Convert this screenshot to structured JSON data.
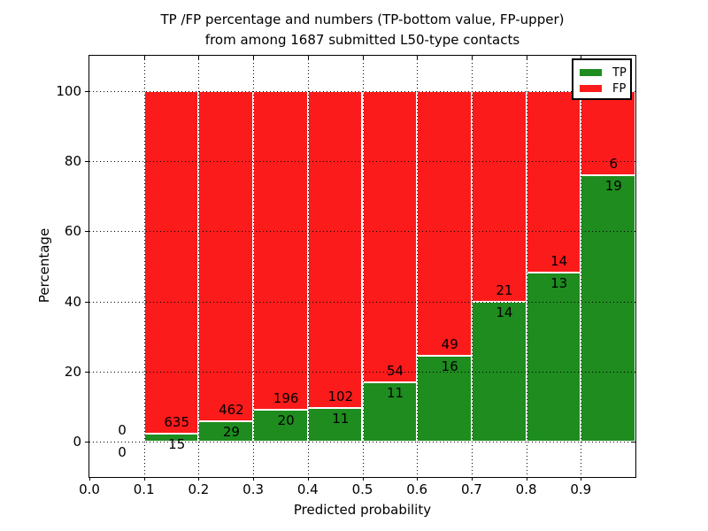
{
  "title": {
    "line1": "TP /FP percentage and numbers (TP-bottom value, FP-upper)",
    "line2": "from among 1687 submitted L50-type contacts"
  },
  "chart_data": {
    "type": "bar",
    "stacked": true,
    "normalized": "each bar scaled to 100%, bar heights show TP/(TP+FP) and FP/(TP+FP) percentages",
    "title": "TP /FP percentage and numbers (TP-bottom value, FP-upper)\nfrom among 1687 submitted L50-type contacts",
    "xlabel": "Predicted probability",
    "ylabel": "Percentage",
    "total_contacts": 1687,
    "xlim": [
      0.0,
      1.0
    ],
    "ylim": [
      -10,
      110
    ],
    "grid": true,
    "bins": [
      [
        0.0,
        0.1
      ],
      [
        0.1,
        0.2
      ],
      [
        0.2,
        0.3
      ],
      [
        0.3,
        0.4
      ],
      [
        0.4,
        0.5
      ],
      [
        0.5,
        0.6
      ],
      [
        0.6,
        0.7
      ],
      [
        0.7,
        0.8
      ],
      [
        0.8,
        0.9
      ],
      [
        0.9,
        1.0
      ]
    ],
    "xticks": [
      "0.0",
      "0.1",
      "0.2",
      "0.3",
      "0.4",
      "0.5",
      "0.6",
      "0.7",
      "0.8",
      "0.9"
    ],
    "yticks": [
      0,
      20,
      40,
      60,
      80,
      100
    ],
    "series": [
      {
        "name": "TP",
        "color": "#1e8c1e",
        "counts": [
          0,
          15,
          29,
          20,
          11,
          11,
          16,
          14,
          13,
          19
        ]
      },
      {
        "name": "FP",
        "color": "#fb1b1b",
        "counts": [
          0,
          635,
          462,
          196,
          102,
          54,
          49,
          21,
          14,
          6
        ]
      }
    ],
    "tp_percent_by_bin": [
      0,
      2.31,
      5.91,
      9.26,
      9.73,
      16.92,
      24.62,
      40.0,
      48.15,
      76.0
    ],
    "legend": {
      "position": "upper right",
      "entries": [
        {
          "label": "TP",
          "color": "#1e8c1e"
        },
        {
          "label": "FP",
          "color": "#fb1b1b"
        }
      ]
    }
  }
}
